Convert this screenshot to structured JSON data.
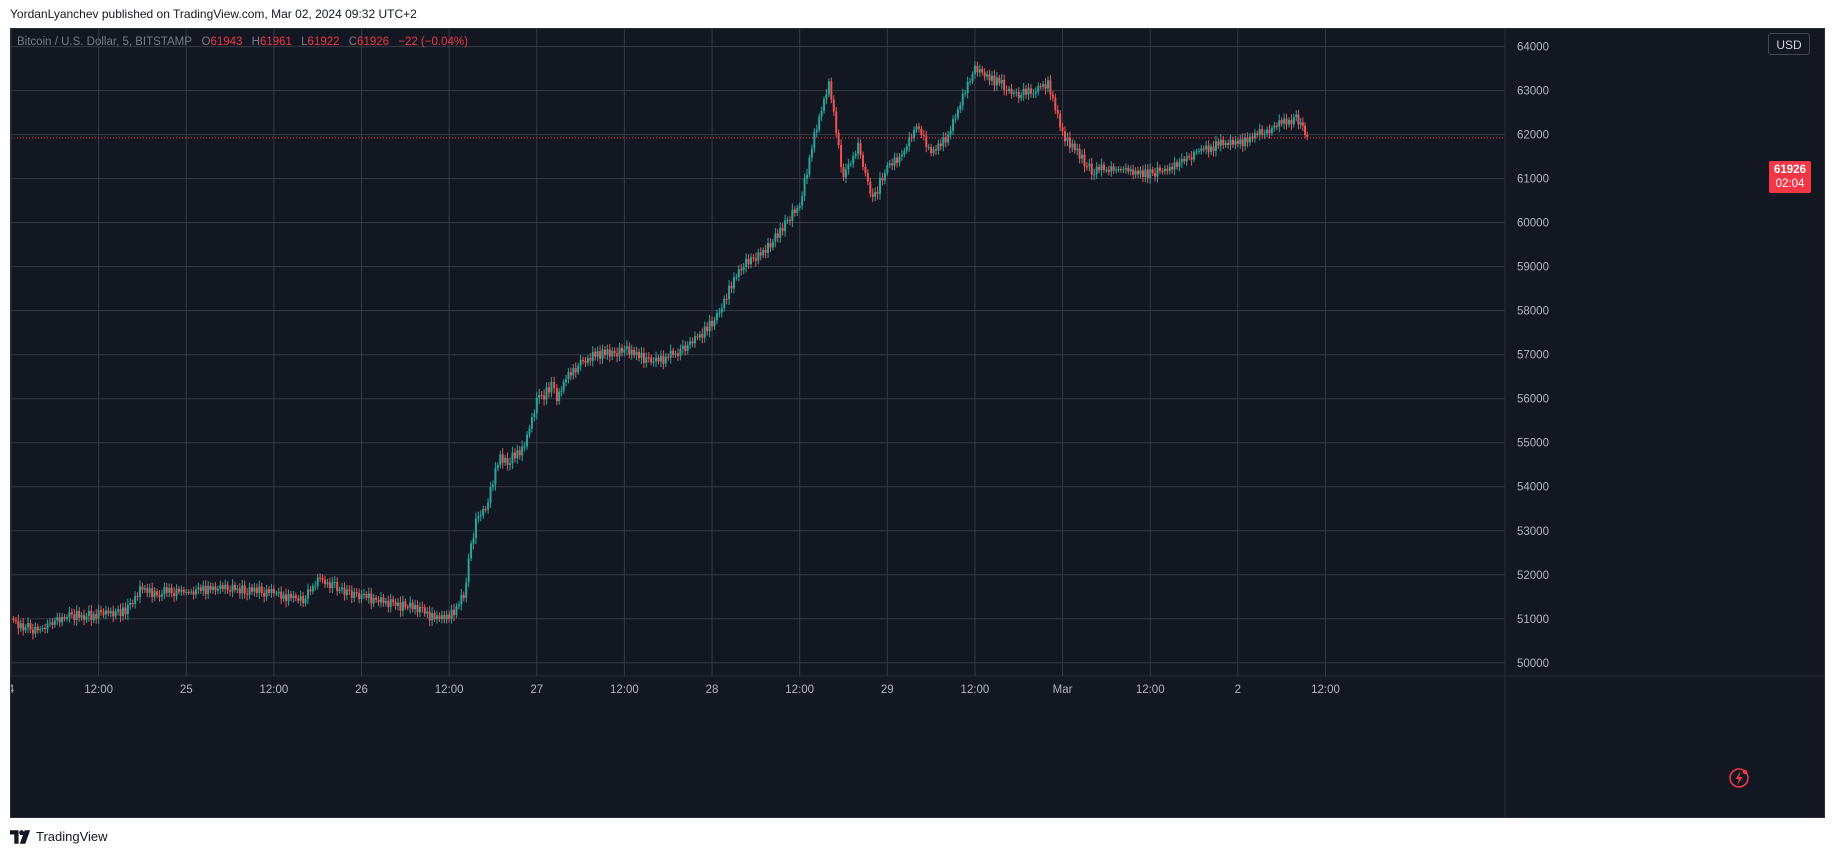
{
  "header": {
    "publish_line": "YordanLyanchev published on TradingView.com, Mar 02, 2024 09:32 UTC+2"
  },
  "legend": {
    "symbol": "Bitcoin / U.S. Dollar, 5, BITSTAMP",
    "open_label": "O",
    "open": "61943",
    "high_label": "H",
    "high": "61961",
    "low_label": "L",
    "low": "61922",
    "close_label": "C",
    "close": "61926",
    "change": "−22 (−0.04%)"
  },
  "price_scale": {
    "currency": "USD",
    "last_price": "61926",
    "countdown": "02:04"
  },
  "footer": {
    "brand": "TradingView"
  },
  "colors": {
    "background": "#131722",
    "grid": "#363a45",
    "up": "#26a69a",
    "down": "#ef5350",
    "last_price": "#f23645",
    "text": "#b2b5be"
  },
  "icons": {
    "alert": "lightning-icon",
    "logo": "tradingview-logo-icon"
  },
  "chart_data": {
    "type": "line",
    "title": "Bitcoin / U.S. Dollar, 5, BITSTAMP",
    "xlabel": "",
    "ylabel": "",
    "ylim": [
      49700,
      64400
    ],
    "xlim": [
      "2024-02-24 00:00",
      "2024-03-03 12:35"
    ],
    "grid": true,
    "y_ticks": [
      50000,
      51000,
      52000,
      53000,
      54000,
      55000,
      56000,
      57000,
      58000,
      59000,
      60000,
      61000,
      62000,
      63000,
      64000
    ],
    "x_ticks": [
      {
        "label": "4",
        "x": "2024-02-24 00:00"
      },
      {
        "label": "12:00",
        "x": "2024-02-24 12:00"
      },
      {
        "label": "25",
        "x": "2024-02-25 00:00"
      },
      {
        "label": "12:00",
        "x": "2024-02-25 12:00"
      },
      {
        "label": "26",
        "x": "2024-02-26 00:00"
      },
      {
        "label": "12:00",
        "x": "2024-02-26 12:00"
      },
      {
        "label": "27",
        "x": "2024-02-27 00:00"
      },
      {
        "label": "12:00",
        "x": "2024-02-27 12:00"
      },
      {
        "label": "28",
        "x": "2024-02-28 00:00"
      },
      {
        "label": "12:00",
        "x": "2024-02-28 12:00"
      },
      {
        "label": "29",
        "x": "2024-02-29 00:00"
      },
      {
        "label": "12:00",
        "x": "2024-02-29 12:00"
      },
      {
        "label": "Mar",
        "x": "2024-03-01 00:00"
      },
      {
        "label": "12:00",
        "x": "2024-03-01 12:00"
      },
      {
        "label": "2",
        "x": "2024-03-02 00:00"
      },
      {
        "label": "12:00",
        "x": "2024-03-02 12:00"
      }
    ],
    "last_price": 61926,
    "series": [
      {
        "x": [
          "2024-02-24 00:00",
          "2024-02-24 02:00",
          "2024-02-24 04:00",
          "2024-02-24 06:00",
          "2024-02-24 08:00",
          "2024-02-24 12:00",
          "2024-02-24 16:00",
          "2024-02-24 18:00",
          "2024-02-24 20:00",
          "2024-02-24 21:00",
          "2024-02-25 00:00",
          "2024-02-25 04:00",
          "2024-02-25 08:00",
          "2024-02-25 12:00",
          "2024-02-25 16:00",
          "2024-02-25 18:00",
          "2024-02-25 20:00",
          "2024-02-25 22:00",
          "2024-02-26 00:00",
          "2024-02-26 04:00",
          "2024-02-26 08:00",
          "2024-02-26 10:00",
          "2024-02-26 12:00",
          "2024-02-26 14:00",
          "2024-02-26 15:00",
          "2024-02-26 16:00",
          "2024-02-26 17:00",
          "2024-02-26 19:00",
          "2024-02-26 20:00",
          "2024-02-26 22:00",
          "2024-02-27 00:00",
          "2024-02-27 02:00",
          "2024-02-27 02:45",
          "2024-02-27 04:00",
          "2024-02-27 06:00",
          "2024-02-27 08:00",
          "2024-02-27 12:00",
          "2024-02-27 16:00",
          "2024-02-27 20:00",
          "2024-02-28 00:00",
          "2024-02-28 04:00",
          "2024-02-28 08:00",
          "2024-02-28 12:00",
          "2024-02-28 14:00",
          "2024-02-28 16:00",
          "2024-02-28 18:00",
          "2024-02-28 20:00",
          "2024-02-28 22:00",
          "2024-02-29 00:00",
          "2024-02-29 02:00",
          "2024-02-29 04:00",
          "2024-02-29 06:00",
          "2024-02-29 08:00",
          "2024-02-29 12:00",
          "2024-02-29 16:00",
          "2024-02-29 18:00",
          "2024-02-29 20:00",
          "2024-02-29 22:00",
          "2024-03-01 00:00",
          "2024-03-01 04:00",
          "2024-03-01 08:00",
          "2024-03-01 12:00",
          "2024-03-01 16:00",
          "2024-03-01 18:00",
          "2024-03-01 20:00",
          "2024-03-01 22:00",
          "2024-03-02 00:00",
          "2024-03-02 04:00",
          "2024-03-02 08:00",
          "2024-03-02 09:30"
        ],
        "values": [
          51000,
          50800,
          50750,
          50950,
          51050,
          51100,
          51200,
          51700,
          51550,
          51650,
          51600,
          51700,
          51650,
          51600,
          51400,
          51900,
          51750,
          51600,
          51500,
          51350,
          51200,
          51000,
          51050,
          51500,
          52700,
          53400,
          53500,
          54700,
          54600,
          54800,
          55900,
          56300,
          56000,
          56500,
          56800,
          57000,
          57100,
          56800,
          57100,
          57700,
          59000,
          59500,
          60400,
          62000,
          63200,
          61000,
          61700,
          60500,
          61300,
          61500,
          62200,
          61600,
          61900,
          63500,
          63100,
          62900,
          63000,
          63200,
          62000,
          61200,
          61200,
          61100,
          61300,
          61600,
          61700,
          61800,
          61800,
          62100,
          62400,
          61926
        ]
      }
    ]
  }
}
